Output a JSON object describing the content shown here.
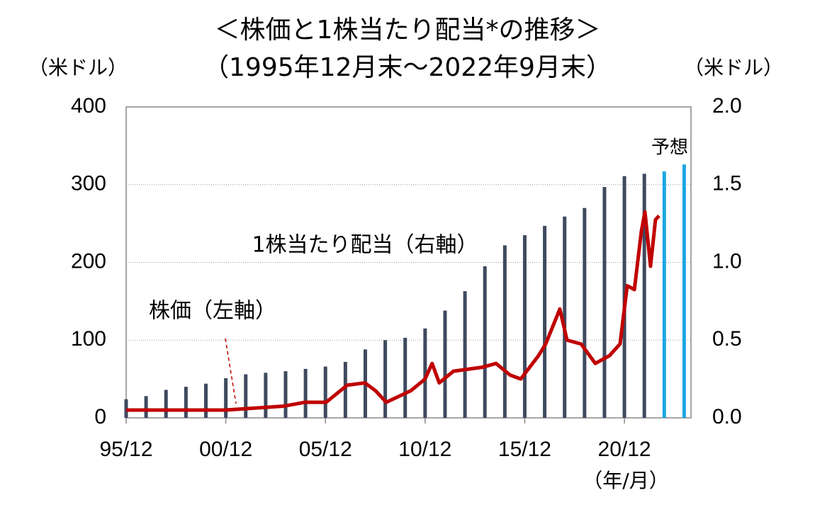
{
  "chart_data": {
    "type": "bar_line",
    "title": "＜株価と1株当たり配当*の推移＞",
    "subtitle": "（1995年12月末～2022年9月末）",
    "y_label": "（米ドル）",
    "y2_label": "（米ドル）",
    "x_label": "（年/月）",
    "xlim": [
      1995.92,
      2024.26
    ],
    "xticks": [
      {
        "value": 1995.92,
        "label": "95/12"
      },
      {
        "value": 2000.92,
        "label": "00/12"
      },
      {
        "value": 2005.92,
        "label": "05/12"
      },
      {
        "value": 2010.92,
        "label": "10/12"
      },
      {
        "value": 2015.92,
        "label": "15/12"
      },
      {
        "value": 2020.92,
        "label": "20/12"
      }
    ],
    "ylim": [
      0,
      400
    ],
    "yticks": [
      0,
      100,
      200,
      300,
      400
    ],
    "y2lim": [
      0,
      2
    ],
    "y2ticks": [
      {
        "value": 0,
        "label": "0.0"
      },
      {
        "value": 0.5,
        "label": "0.5"
      },
      {
        "value": 1,
        "label": "1.0"
      },
      {
        "value": 1.5,
        "label": "1.5"
      },
      {
        "value": 2,
        "label": "2.0"
      }
    ],
    "grid": true,
    "series": [
      {
        "name": "1株当たり配当（右軸）",
        "kind": "bar",
        "axis": "y2",
        "color": "#3f4a5f",
        "x": [
          1995.92,
          1996.92,
          1997.92,
          1998.92,
          1999.92,
          2000.92,
          2001.92,
          2002.92,
          2003.92,
          2004.92,
          2005.92,
          2006.92,
          2007.92,
          2008.92,
          2009.92,
          2010.92,
          2011.92,
          2012.92,
          2013.92,
          2014.92,
          2015.92,
          2016.92,
          2017.92,
          2018.92,
          2019.92,
          2020.92,
          2021.92
        ],
        "values": [
          0.12,
          0.14,
          0.18,
          0.2,
          0.22,
          0.255,
          0.28,
          0.29,
          0.3,
          0.315,
          0.33,
          0.36,
          0.44,
          0.5,
          0.515,
          0.575,
          0.69,
          0.815,
          0.975,
          1.11,
          1.175,
          1.235,
          1.295,
          1.35,
          1.485,
          1.555,
          1.57
        ]
      },
      {
        "name": "予想",
        "kind": "bar",
        "axis": "y2",
        "color": "#1ea7e1",
        "x": [
          2022.92,
          2023.92
        ],
        "values": [
          1.585,
          1.63
        ]
      },
      {
        "name": "株価（左軸）",
        "kind": "line",
        "axis": "y",
        "color": "#c00000",
        "x": [
          1995.92,
          1998.48,
          2000.9,
          2002.03,
          2003.81,
          2004.88,
          2005.95,
          2007.01,
          2007.9,
          2008.43,
          2008.97,
          2010.21,
          2010.92,
          2011.27,
          2011.63,
          2012.34,
          2013.77,
          2014.48,
          2015.19,
          2015.72,
          2016.61,
          2016.97,
          2017.68,
          2018.04,
          2018.75,
          2019.46,
          2020.17,
          2020.7,
          2021.06,
          2021.42,
          2021.77,
          2021.95,
          2022.23,
          2022.48,
          2022.66
        ],
        "values": [
          10,
          10,
          10,
          12,
          15,
          20,
          20,
          42,
          45,
          35,
          20,
          35,
          50,
          70,
          45,
          60,
          65,
          70,
          55,
          50,
          80,
          95,
          140,
          100,
          95,
          70,
          80,
          95,
          170,
          165,
          240,
          265,
          195,
          255,
          260
        ]
      }
    ]
  }
}
